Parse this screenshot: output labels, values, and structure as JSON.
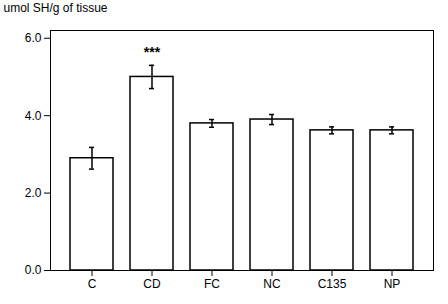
{
  "chart_data": {
    "type": "bar",
    "categories": [
      "C",
      "CD",
      "FC",
      "NC",
      "C135",
      "NP"
    ],
    "values": [
      2.9,
      5.0,
      3.8,
      3.9,
      3.62,
      3.62
    ],
    "errors": [
      0.28,
      0.3,
      0.1,
      0.13,
      0.09,
      0.09
    ],
    "color": "#ffffff",
    "ylabel": "umol SH/g of tissue",
    "ylim": [
      0,
      6.2
    ],
    "yticks": [
      0,
      2,
      4,
      6
    ],
    "grid": false,
    "annotations": [
      {
        "text": "***",
        "category": "CD"
      }
    ]
  }
}
